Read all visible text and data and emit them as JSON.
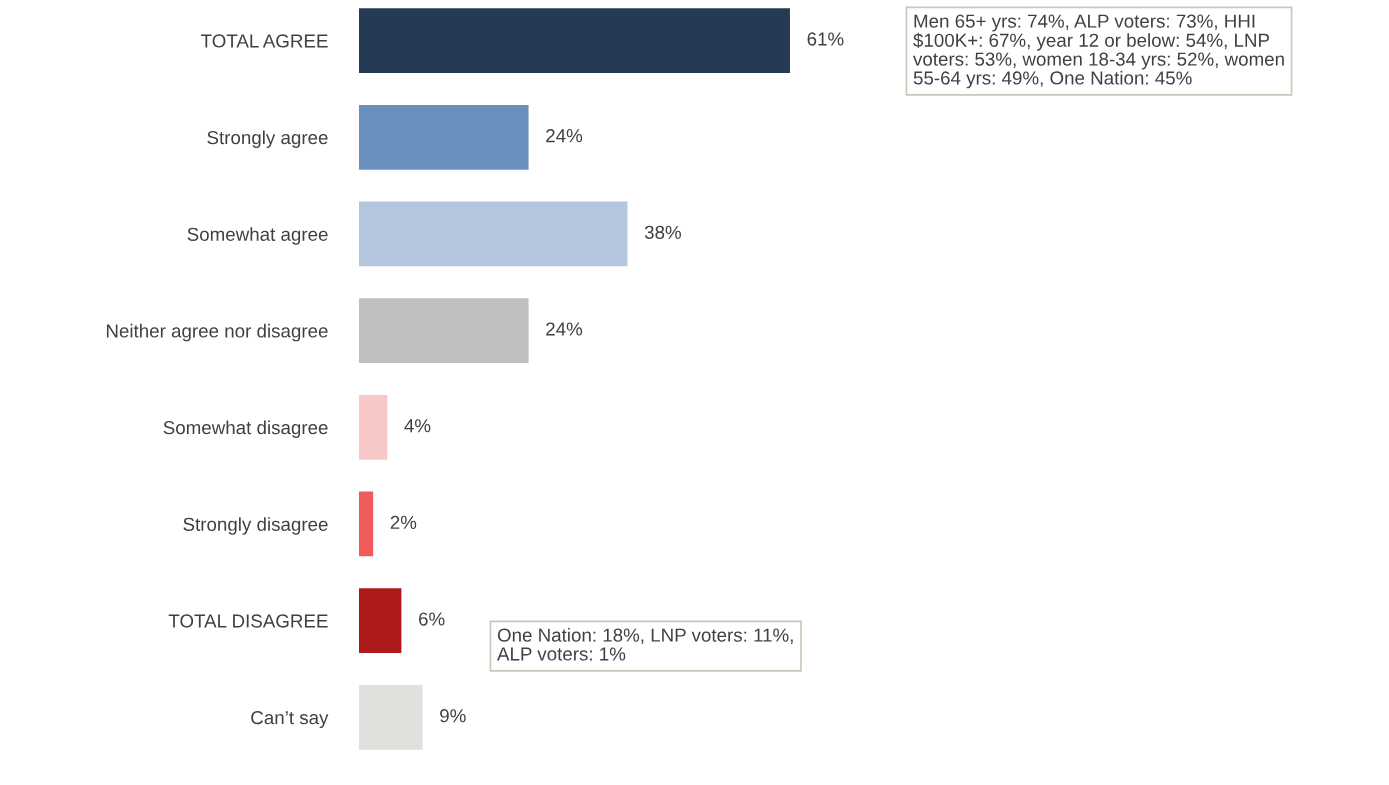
{
  "chart_data": {
    "type": "bar",
    "orientation": "horizontal",
    "categories": [
      "TOTAL AGREE",
      "Strongly agree",
      "Somewhat agree",
      "Neither agree nor disagree",
      "Somewhat disagree",
      "Strongly disagree",
      "TOTAL DISAGREE",
      "Can’t say"
    ],
    "values": [
      61,
      24,
      38,
      24,
      4,
      2,
      6,
      9
    ],
    "value_labels": [
      "61%",
      "24%",
      "38%",
      "24%",
      "4%",
      "2%",
      "6%",
      "9%"
    ],
    "colors": [
      "#243a55",
      "#6990bd",
      "#b3c6de",
      "#bfbfbf",
      "#f8c8c8",
      "#ef5b5b",
      "#ae1a1a",
      "#e0e0dc"
    ],
    "annotations": [
      "Men 65+ yrs: 74%, ALP voters: 73%, HHI\n$100K+: 67%, year 12 or below: 54%, LNP\nvoters: 53%, women 18-34 yrs: 52%, women\n55-64 yrs: 49%, One Nation: 45%",
      "One Nation: 18%, LNP voters: 11%,\nALP voters: 1%"
    ],
    "grid": false,
    "legend": false
  }
}
